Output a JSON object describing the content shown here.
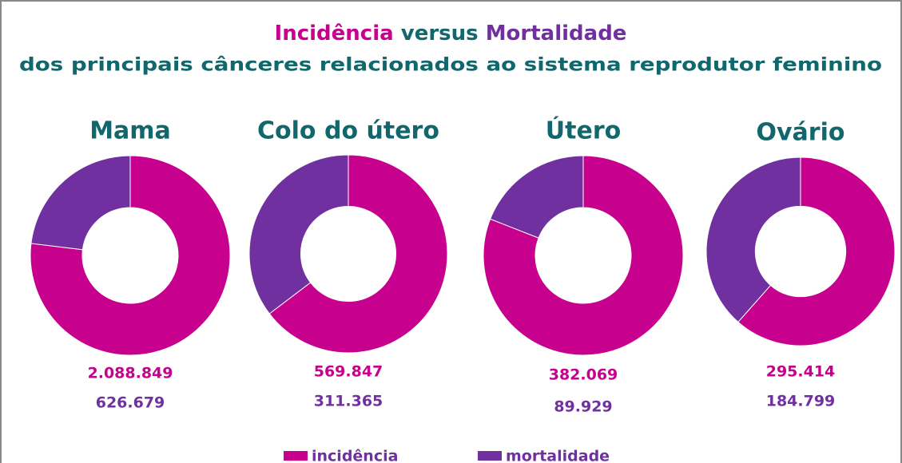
{
  "header": {
    "title": [
      "Incidência",
      "versus",
      "Mortalidade"
    ],
    "subtitle": "dos principais cânceres relacionados ao sistema reprodutor feminino"
  },
  "chart_data": [
    {
      "type": "pie",
      "title": "Mama",
      "categories": [
        "incidência",
        "mortalidade"
      ],
      "values": [
        2088849,
        626679
      ],
      "value_labels": [
        "2.088.849",
        "626.679"
      ],
      "colors": [
        "#c7008e",
        "#7030a0"
      ]
    },
    {
      "type": "pie",
      "title": "Colo do útero",
      "categories": [
        "incidência",
        "mortalidade"
      ],
      "values": [
        569847,
        311365
      ],
      "value_labels": [
        "569.847",
        "311.365"
      ],
      "colors": [
        "#c7008e",
        "#7030a0"
      ]
    },
    {
      "type": "pie",
      "title": "Útero",
      "categories": [
        "incidência",
        "mortalidade"
      ],
      "values": [
        382069,
        89929
      ],
      "value_labels": [
        "382.069",
        "89.929"
      ],
      "colors": [
        "#c7008e",
        "#7030a0"
      ]
    },
    {
      "type": "pie",
      "title": "Ovário",
      "categories": [
        "incidência",
        "mortalidade"
      ],
      "values": [
        295414,
        184799
      ],
      "value_labels": [
        "295.414",
        "184.799"
      ],
      "colors": [
        "#c7008e",
        "#7030a0"
      ]
    }
  ]
}
